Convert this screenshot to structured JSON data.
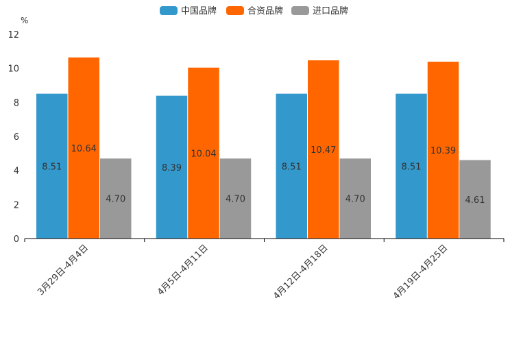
{
  "chart_data": {
    "type": "bar",
    "title": "",
    "ylabel": "%",
    "xlabel": "",
    "ylim": [
      0,
      12
    ],
    "yticks": [
      0,
      2,
      4,
      6,
      8,
      10,
      12
    ],
    "categories": [
      "3月29日-4月4日",
      "4月5日-4月11日",
      "4月12日-4月18日",
      "4月19日-4月25日"
    ],
    "series": [
      {
        "name": "中国品牌",
        "color": "#3399cc",
        "values": [
          8.51,
          8.39,
          8.51,
          8.51
        ],
        "labels": [
          "8.51",
          "8.39",
          "8.51",
          "8.51"
        ]
      },
      {
        "name": "合资品牌",
        "color": "#ff6600",
        "values": [
          10.64,
          10.04,
          10.47,
          10.39
        ],
        "labels": [
          "10.64",
          "10.04",
          "10.47",
          "10.39"
        ]
      },
      {
        "name": "进口品牌",
        "color": "#999999",
        "values": [
          4.7,
          4.7,
          4.7,
          4.61
        ],
        "labels": [
          "4.70",
          "4.70",
          "4.70",
          "4.61"
        ]
      }
    ],
    "legend_position": "top-center",
    "grid": false
  }
}
